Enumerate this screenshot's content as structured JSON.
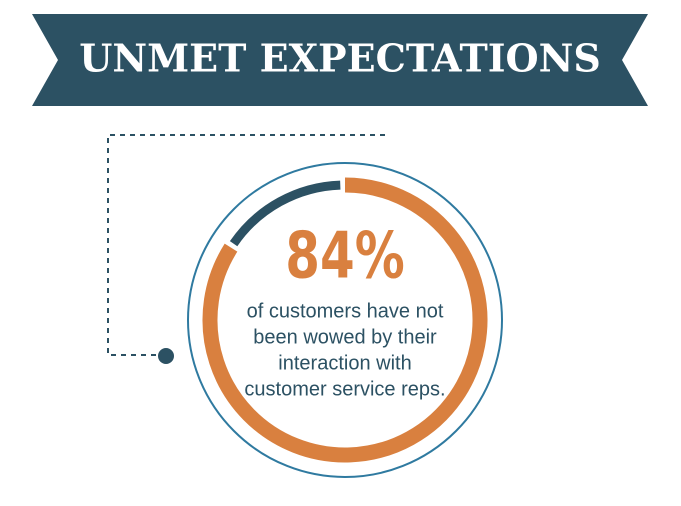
{
  "chart_data": {
    "type": "gauge",
    "title": "UNMET EXPECTATIONS",
    "values": [
      84
    ],
    "value_labels": [
      "84%"
    ],
    "ylim": [
      0,
      100
    ],
    "color": "#d9803f",
    "track_color": "#2c5163",
    "annotations": [
      "of customers have not",
      "been wowed by their",
      "interaction with",
      "customer service reps."
    ]
  }
}
